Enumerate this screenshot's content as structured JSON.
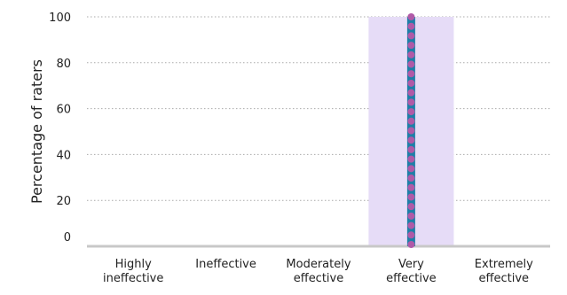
{
  "chart_data": {
    "type": "bar",
    "title": "",
    "xlabel": "",
    "ylabel": "Percentage of raters",
    "ylim": [
      0,
      100
    ],
    "yticks": [
      0,
      20,
      40,
      60,
      80,
      100
    ],
    "grid": "horizontal-dotted",
    "categories": [
      [
        "Highly",
        "ineffective"
      ],
      [
        "Ineffective"
      ],
      [
        "Moderately",
        "effective"
      ],
      [
        "Very",
        "effective"
      ],
      [
        "Extremely",
        "effective"
      ]
    ],
    "values": [
      0,
      0,
      0,
      100,
      0
    ],
    "colors": {
      "bar_fill": "#e6dcf7",
      "axis_line": "#c8c8c8",
      "grid_line": "#a9a9a9",
      "dot_stroke": "#1e7fa8",
      "dot_fill": "#b05aa8"
    }
  }
}
